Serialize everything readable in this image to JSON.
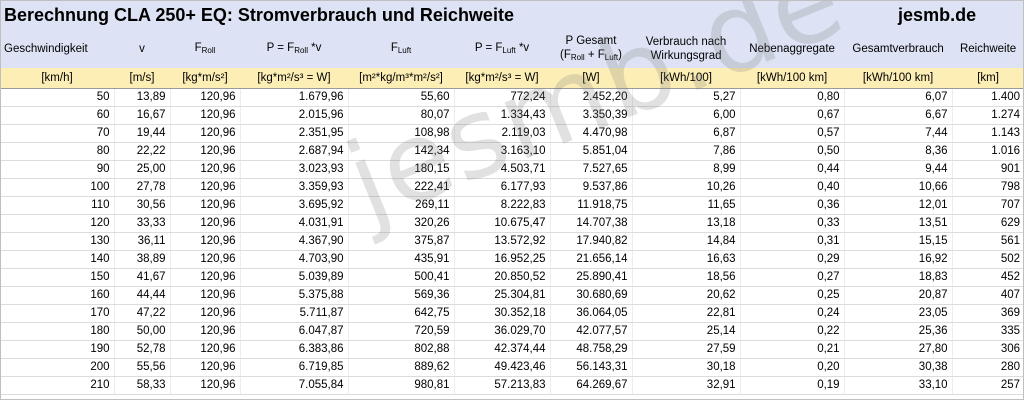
{
  "title": "Berechnung CLA 250+ EQ: Stromverbrauch und Reichweite",
  "brand": "jesmb.de",
  "watermark": "jesmb.de",
  "headers": [
    {
      "key": "geschwindigkeit",
      "main": "Geschwindigkeit"
    },
    {
      "key": "v",
      "main": "v"
    },
    {
      "key": "froll",
      "main": "F",
      "sub": "Roll"
    },
    {
      "key": "p_roll",
      "main": "P = F",
      "sub": "Roll",
      "tail": " *v"
    },
    {
      "key": "fluft",
      "main": "F",
      "sub": "Luft"
    },
    {
      "key": "p_luft",
      "main": "P = F",
      "sub": "Luft",
      "tail": " *v"
    },
    {
      "key": "p_gesamt",
      "line1": "P Gesamt",
      "line2a": "(F",
      "line2sub1": "Roll",
      "line2b": " + F",
      "line2sub2": "Luft",
      "line2c": ")"
    },
    {
      "key": "verbrauch_wg",
      "line1": "Verbrauch nach",
      "line2": "Wirkungsgrad"
    },
    {
      "key": "nebenaggregate",
      "main": "Nebenaggregate"
    },
    {
      "key": "gesamtverbrauch",
      "main": "Gesamtverbrauch"
    },
    {
      "key": "reichweite",
      "main": "Reichweite"
    }
  ],
  "units": [
    "[km/h]",
    "[m/s]",
    "[kg*m/s²]",
    "[kg*m²/s³ = W]",
    "[m²*kg/m³*m²/s²]",
    "[kg*m²/s³ = W]",
    "[W]",
    "[kWh/100]",
    "[kWh/100 km]",
    "[kWh/100 km]",
    "[km]"
  ],
  "rows": [
    [
      "50",
      "13,89",
      "120,96",
      "1.679,96",
      "55,60",
      "772,24",
      "2.452,20",
      "5,27",
      "0,80",
      "6,07",
      "1.400"
    ],
    [
      "60",
      "16,67",
      "120,96",
      "2.015,96",
      "80,07",
      "1.334,43",
      "3.350,39",
      "6,00",
      "0,67",
      "6,67",
      "1.274"
    ],
    [
      "70",
      "19,44",
      "120,96",
      "2.351,95",
      "108,98",
      "2.119,03",
      "4.470,98",
      "6,87",
      "0,57",
      "7,44",
      "1.143"
    ],
    [
      "80",
      "22,22",
      "120,96",
      "2.687,94",
      "142,34",
      "3.163,10",
      "5.851,04",
      "7,86",
      "0,50",
      "8,36",
      "1.016"
    ],
    [
      "90",
      "25,00",
      "120,96",
      "3.023,93",
      "180,15",
      "4.503,71",
      "7.527,65",
      "8,99",
      "0,44",
      "9,44",
      "901"
    ],
    [
      "100",
      "27,78",
      "120,96",
      "3.359,93",
      "222,41",
      "6.177,93",
      "9.537,86",
      "10,26",
      "0,40",
      "10,66",
      "798"
    ],
    [
      "110",
      "30,56",
      "120,96",
      "3.695,92",
      "269,11",
      "8.222,83",
      "11.918,75",
      "11,65",
      "0,36",
      "12,01",
      "707"
    ],
    [
      "120",
      "33,33",
      "120,96",
      "4.031,91",
      "320,26",
      "10.675,47",
      "14.707,38",
      "13,18",
      "0,33",
      "13,51",
      "629"
    ],
    [
      "130",
      "36,11",
      "120,96",
      "4.367,90",
      "375,87",
      "13.572,92",
      "17.940,82",
      "14,84",
      "0,31",
      "15,15",
      "561"
    ],
    [
      "140",
      "38,89",
      "120,96",
      "4.703,90",
      "435,91",
      "16.952,25",
      "21.656,14",
      "16,63",
      "0,29",
      "16,92",
      "502"
    ],
    [
      "150",
      "41,67",
      "120,96",
      "5.039,89",
      "500,41",
      "20.850,52",
      "25.890,41",
      "18,56",
      "0,27",
      "18,83",
      "452"
    ],
    [
      "160",
      "44,44",
      "120,96",
      "5.375,88",
      "569,36",
      "25.304,81",
      "30.680,69",
      "20,62",
      "0,25",
      "20,87",
      "407"
    ],
    [
      "170",
      "47,22",
      "120,96",
      "5.711,87",
      "642,75",
      "30.352,18",
      "36.064,05",
      "22,81",
      "0,24",
      "23,05",
      "369"
    ],
    [
      "180",
      "50,00",
      "120,96",
      "6.047,87",
      "720,59",
      "36.029,70",
      "42.077,57",
      "25,14",
      "0,22",
      "25,36",
      "335"
    ],
    [
      "190",
      "52,78",
      "120,96",
      "6.383,86",
      "802,88",
      "42.374,44",
      "48.758,29",
      "27,59",
      "0,21",
      "27,80",
      "306"
    ],
    [
      "200",
      "55,56",
      "120,96",
      "6.719,85",
      "889,62",
      "49.423,46",
      "56.143,31",
      "30,18",
      "0,20",
      "30,38",
      "280"
    ],
    [
      "210",
      "58,33",
      "120,96",
      "7.055,84",
      "980,81",
      "57.213,83",
      "64.269,67",
      "32,91",
      "0,19",
      "33,10",
      "257"
    ]
  ]
}
